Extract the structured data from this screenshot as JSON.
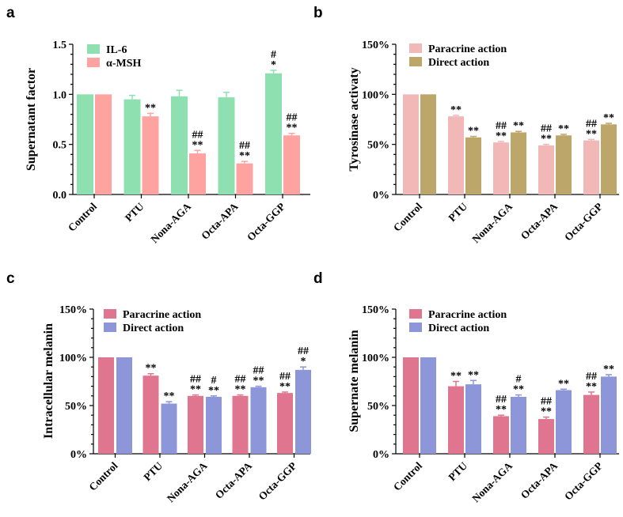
{
  "chart_data": [
    {
      "panel": "a",
      "type": "bar",
      "ylabel": "Supernatant factor",
      "ylim": [
        0,
        1.5
      ],
      "yticks": [
        "0.0",
        "0.5",
        "1.0",
        "1.5"
      ],
      "categories": [
        "Control",
        "PTU",
        "Nona-AGA",
        "Octa-APA",
        "Octa-GGP"
      ],
      "legend_position": "top-left",
      "series": [
        {
          "name": "IL-6",
          "color": "#8fe0b0",
          "values": [
            1.0,
            0.95,
            0.98,
            0.97,
            1.21
          ],
          "errors": [
            0,
            0.04,
            0.06,
            0.05,
            0.03
          ],
          "sig": [
            [],
            [],
            [],
            [],
            [
              "#",
              "*"
            ]
          ]
        },
        {
          "name": "α-MSH",
          "color": "#ffa3a0",
          "values": [
            1.0,
            0.78,
            0.41,
            0.31,
            0.59
          ],
          "errors": [
            0,
            0.03,
            0.03,
            0.02,
            0.02
          ],
          "sig": [
            [],
            [
              "**"
            ],
            [
              "##",
              "**"
            ],
            [
              "##",
              "**"
            ],
            [
              "##",
              "**"
            ]
          ]
        }
      ]
    },
    {
      "panel": "b",
      "type": "bar",
      "ylabel": "Tyrosinase activaty",
      "ylim": [
        0,
        150
      ],
      "yticks": [
        "0%",
        "50%",
        "100%",
        "150%"
      ],
      "categories": [
        "Control",
        "PTU",
        "Nona-AGA",
        "Octa-APA",
        "Octa-GGP"
      ],
      "legend_position": "top-right",
      "series": [
        {
          "name": "Paracrine action",
          "color": "#f2b8b8",
          "values": [
            100,
            78,
            52,
            49,
            54
          ],
          "errors": [
            0,
            1,
            1,
            1,
            1
          ],
          "sig": [
            [],
            [
              "**"
            ],
            [
              "##",
              "**"
            ],
            [
              "##",
              "**"
            ],
            [
              "##",
              "**"
            ]
          ]
        },
        {
          "name": "Direct action",
          "color": "#bda66a",
          "values": [
            100,
            57,
            62,
            59,
            70
          ],
          "errors": [
            0,
            1,
            1,
            1,
            1
          ],
          "sig": [
            [],
            [
              "**"
            ],
            [
              "**"
            ],
            [
              "**"
            ],
            [
              "**"
            ]
          ]
        }
      ]
    },
    {
      "panel": "c",
      "type": "bar",
      "ylabel": "Intracellular melanin",
      "ylim": [
        0,
        150
      ],
      "yticks": [
        "0%",
        "50%",
        "100%",
        "150%"
      ],
      "categories": [
        "Control",
        "PTU",
        "Nona-AGA",
        "Octa-APA",
        "Octa-GGP"
      ],
      "legend_position": "top-right",
      "series": [
        {
          "name": "Paracrine action",
          "color": "#e07590",
          "values": [
            100,
            81,
            60,
            60,
            63
          ],
          "errors": [
            0,
            2,
            1,
            1,
            1
          ],
          "sig": [
            [],
            [
              "**"
            ],
            [
              "##",
              "**"
            ],
            [
              "##",
              "**"
            ],
            [
              "##",
              "**"
            ]
          ]
        },
        {
          "name": "Direct action",
          "color": "#8c96d8",
          "values": [
            100,
            52,
            59,
            69,
            87
          ],
          "errors": [
            0,
            2,
            1,
            1,
            3
          ],
          "sig": [
            [],
            [
              "**"
            ],
            [
              "#",
              "**"
            ],
            [
              "##",
              "**"
            ],
            [
              "##",
              "*"
            ]
          ]
        }
      ]
    },
    {
      "panel": "d",
      "type": "bar",
      "ylabel": "Supernate melanin",
      "ylim": [
        0,
        150
      ],
      "yticks": [
        "0%",
        "50%",
        "100%",
        "150%"
      ],
      "categories": [
        "Control",
        "PTU",
        "Nona-AGA",
        "Octa-APA",
        "Octa-GGP"
      ],
      "legend_position": "top-right",
      "series": [
        {
          "name": "Paracrine action",
          "color": "#e07590",
          "values": [
            100,
            70,
            39,
            36,
            61
          ],
          "errors": [
            0,
            5,
            1,
            2,
            3
          ],
          "sig": [
            [],
            [
              "**"
            ],
            [
              "##",
              "**"
            ],
            [
              "##",
              "**"
            ],
            [
              "##",
              "**"
            ]
          ]
        },
        {
          "name": "Direct action",
          "color": "#8c96d8",
          "values": [
            100,
            72,
            59,
            66,
            80
          ],
          "errors": [
            0,
            4,
            2,
            1,
            2
          ],
          "sig": [
            [],
            [
              "**"
            ],
            [
              "#",
              "**"
            ],
            [
              "**"
            ],
            [
              "**"
            ]
          ]
        }
      ]
    }
  ]
}
